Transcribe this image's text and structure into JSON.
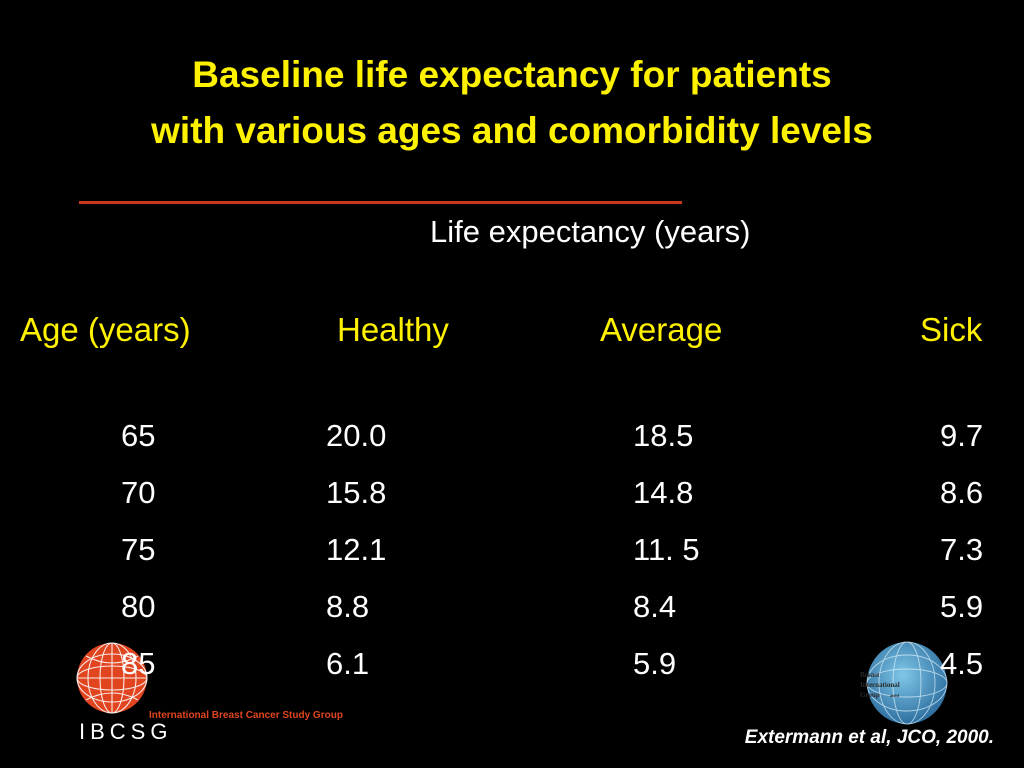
{
  "title": {
    "line1": "Baseline life expectancy for patients",
    "line2": "with various ages and comorbidity levels"
  },
  "subheader": "Life expectancy (years)",
  "table": {
    "headers": [
      "Age (years)",
      "Healthy",
      "Average",
      "Sick"
    ],
    "rows": [
      [
        "65",
        "20.0",
        "18.5",
        "9.7"
      ],
      [
        "70",
        "15.8",
        "14.8",
        "8.6"
      ],
      [
        "75",
        "12.1",
        "11. 5",
        "7.3"
      ],
      [
        "80",
        "8.8",
        "8.4",
        "5.9"
      ],
      [
        "85",
        "6.1",
        "5.9",
        "4.5"
      ]
    ]
  },
  "citation": "Extermann et al, JCO, 2000.",
  "logos": {
    "ibcsg": {
      "acronym": "IBCSG",
      "full_name": "International Breast Cancer Study Group",
      "color": "#E0451F"
    },
    "big": {
      "line1": "Breast",
      "line2": "International",
      "line3": "Group",
      "mark": "aisbl"
    }
  },
  "colors": {
    "background": "#000000",
    "accent": "#FFF200",
    "rule": "#C8361B",
    "text": "#FFFFFF"
  }
}
